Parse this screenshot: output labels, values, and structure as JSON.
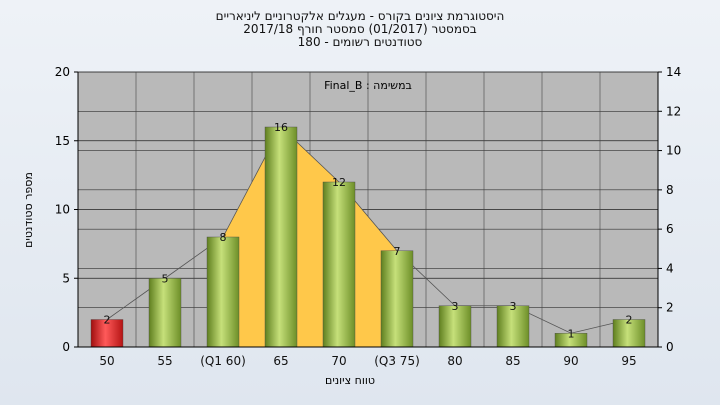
{
  "header": {
    "line1": "היסטוגרמת ציונים בקורס - מעגלים אלקטרוניים ליניאריים",
    "line2": "בסמסטר (01/2017) סמסטר חורף 2017/18",
    "line3": "סטודנטים רשומים - 180"
  },
  "chart_data": {
    "type": "bar",
    "title": "היסטוגרמת ציונים בקורס - מעגלים אלקטרוניים ליניאריים",
    "subtitle": "בסמסטר (01/2017) סמסטר חורף 2017/18 / סטודנטים רשומים - 180",
    "annotation": "במשימה : Final_B",
    "xlabel": "טווח ציונים",
    "ylabel": "מספר סטודנטים",
    "categories": [
      "50",
      "55",
      "(Q1 60)",
      "65",
      "70",
      "(Q3 75)",
      "80",
      "85",
      "90",
      "95"
    ],
    "values": [
      2,
      5,
      8,
      16,
      12,
      7,
      3,
      3,
      1,
      2
    ],
    "bar_labels": [
      "2",
      "5",
      "8",
      "16",
      "12",
      "7",
      "3",
      "3",
      "1",
      "2"
    ],
    "ylim_left": [
      0,
      20
    ],
    "yticks_left": [
      "0",
      "5",
      "10",
      "15",
      "20"
    ],
    "ylim_right": [
      0,
      14
    ],
    "yticks_right": [
      "0",
      "2",
      "4",
      "6",
      "8",
      "10",
      "12",
      "14"
    ],
    "grid": true,
    "shaded_region": {
      "from": "(Q1 60)",
      "to": "(Q3 75)"
    },
    "colors": {
      "bar_default": "#9bbf4a",
      "bar_highlight": "#e02424",
      "quartile_fill": "#ffc84a",
      "plot_bg": "#b9b9b9",
      "envelope_line": "#555555"
    },
    "highlight_index": 0
  }
}
